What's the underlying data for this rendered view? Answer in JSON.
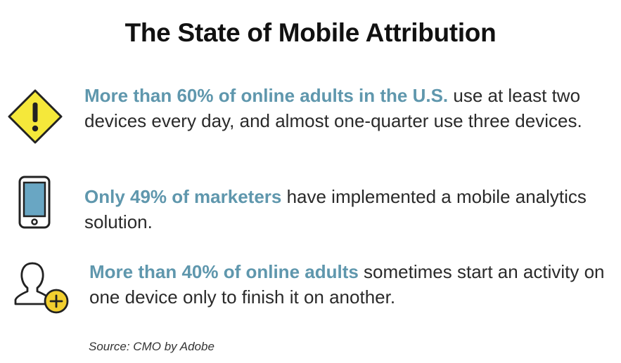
{
  "title": "The State of Mobile Attribution",
  "colors": {
    "highlight": "#5f97ad",
    "warning_yellow": "#f5e83a",
    "phone_blue": "#69a6c3",
    "plus_yellow": "#f2cf2f",
    "ink": "#222222"
  },
  "items": [
    {
      "icon": "warning-icon",
      "highlight": "More than 60% of online adults in the U.S.",
      "rest": " use at least two devices every day, and almost one-quarter use three devices."
    },
    {
      "icon": "smartphone-icon",
      "highlight": "Only 49% of marketers",
      "rest": " have implemented a mobile analytics solution."
    },
    {
      "icon": "add-user-icon",
      "highlight": "More than 40% of online adults",
      "rest": " sometimes start an activity on one device only to finish it on another."
    }
  ],
  "source": "Source: CMO by Adobe"
}
